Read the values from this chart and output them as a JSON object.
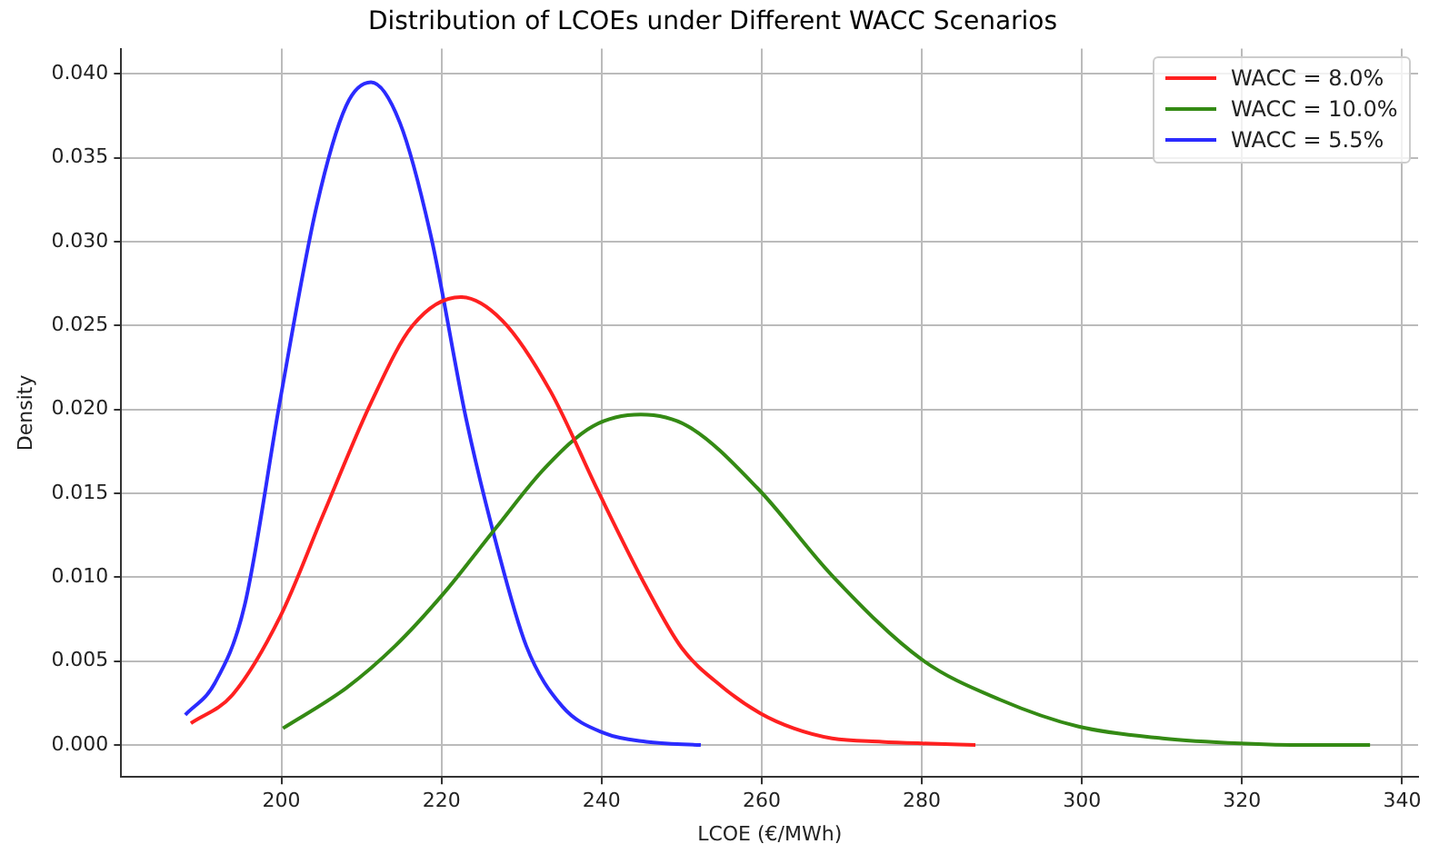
{
  "chart_data": {
    "type": "line",
    "title": "Distribution of LCOEs under Different WACC Scenarios",
    "xlabel": "LCOE (€/MWh)",
    "ylabel": "Density",
    "xlim": [
      180,
      342
    ],
    "xticks": [
      200,
      220,
      240,
      260,
      280,
      300,
      320,
      340
    ],
    "ylim": [
      -0.0019,
      0.0415
    ],
    "yticks": [
      {
        "value": 0,
        "label": "0.000"
      },
      0.005,
      {
        "value": 0.01,
        "label": "0.010"
      },
      0.015,
      {
        "value": 0.02,
        "label": "0.020"
      },
      0.025,
      {
        "value": 0.03,
        "label": "0.030"
      },
      0.035,
      {
        "value": 0.04,
        "label": "0.040"
      }
    ],
    "grid": true,
    "legend": "top right",
    "marker": "none",
    "line_style": "solid",
    "series": [
      {
        "name": "WACC = 8.0%",
        "color": "#ff2020",
        "x": [
          188.7,
          193.9,
          199.9,
          205.2,
          211.2,
          216.4,
          222.4,
          227.6,
          233.6,
          239.6,
          245.6,
          250,
          255,
          259.8,
          264,
          268.8,
          275,
          280,
          286.7
        ],
        "values": [
          0.0013,
          0.003,
          0.0077,
          0.0137,
          0.0204,
          0.025,
          0.0267,
          0.0253,
          0.0211,
          0.0151,
          0.0094,
          0.0058,
          0.0035,
          0.0019,
          0.001,
          0.0004,
          0.0002,
          0.0001,
          0
        ]
      },
      {
        "name": "WACC = 10.0%",
        "color": "#348a14",
        "x": [
          200.2,
          208.1,
          214.2,
          220.2,
          226.9,
          232.9,
          238.9,
          244.9,
          250.8,
          259.5,
          268.8,
          280,
          289.8,
          299.6,
          310.1,
          319.8,
          328,
          336
        ],
        "values": [
          0.001,
          0.0034,
          0.0059,
          0.009,
          0.013,
          0.0165,
          0.019,
          0.0197,
          0.019,
          0.0153,
          0.0101,
          0.0051,
          0.0027,
          0.0011,
          0.0004,
          0.0001,
          0,
          0
        ]
      },
      {
        "name": "WACC = 5.5%",
        "color": "#2b2bff",
        "x": [
          188,
          191.7,
          195.4,
          199.9,
          204.4,
          208.1,
          211.2,
          214.8,
          218.7,
          223.1,
          226.9,
          230.6,
          235.1,
          240.4,
          245.6,
          252.4
        ],
        "values": [
          0.0018,
          0.0037,
          0.0083,
          0.0207,
          0.0321,
          0.0381,
          0.0395,
          0.0371,
          0.0303,
          0.0194,
          0.0119,
          0.0059,
          0.0023,
          0.0007,
          0.0002,
          0
        ]
      }
    ]
  }
}
